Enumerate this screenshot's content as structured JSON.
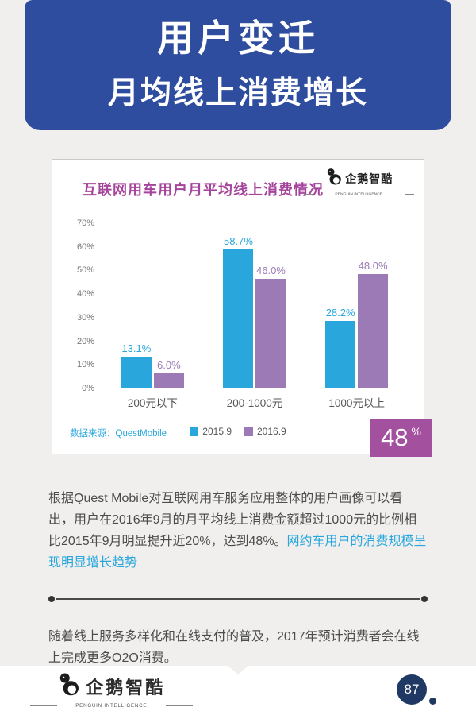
{
  "banner": {
    "line1": "用户变迁",
    "line2": "月均线上消费增长"
  },
  "card": {
    "title": "互联网用车用户月平均线上消费情况",
    "logo": {
      "text": "企鹅智酷",
      "subtitle": "PENGUIN INTELLIGENCE"
    },
    "source": "数据来源：QuestMobile",
    "badge": {
      "value": "48",
      "unit": "%"
    }
  },
  "chart_data": {
    "type": "bar",
    "title": "互联网用车用户月平均线上消费情况",
    "categories": [
      "200元以下",
      "200-1000元",
      "1000元以上"
    ],
    "series": [
      {
        "name": "2015.9",
        "color": "#29a7dd",
        "values": [
          13.1,
          58.7,
          28.2
        ]
      },
      {
        "name": "2016.9",
        "color": "#9b7ab5",
        "values": [
          6.0,
          46.0,
          48.0
        ]
      }
    ],
    "value_labels": [
      [
        "13.1%",
        "58.7%",
        "28.2%"
      ],
      [
        "6.0%",
        "46.0%",
        "48.0%"
      ]
    ],
    "xlabel": "",
    "ylabel": "",
    "ylim": [
      0,
      70
    ],
    "yticks": [
      "0%",
      "10%",
      "20%",
      "30%",
      "40%",
      "50%",
      "60%",
      "70%"
    ],
    "grid": false,
    "legend_position": "bottom"
  },
  "paragraphs": {
    "p1_lead": "根据Quest Mobile对互联网用车服务应用整体的用户画像可以看出，用户在2016年9月的月平均线上消费金额超过1000元的比例相比2015年9月明显提升近20%，达到48%。",
    "p1_highlight": "网约车用户的消费规模呈现明显增长趋势",
    "p2": "随着线上服务多样化和在线支付的普及，2017年预计消费者会在线上完成更多O2O消费。"
  },
  "footer": {
    "logo_text": "企鹅智酷",
    "logo_subtitle": "PENGUIN INTELLIGENCE",
    "page_number": "87"
  },
  "colors": {
    "banner_blue": "#2e4d9e",
    "series_2015_blue": "#29a7dd",
    "series_2016_purple": "#9b7ab5",
    "badge_purple": "#a3509e",
    "chart_title_purple": "#a4449a",
    "highlight_blue": "#29a7dd"
  }
}
